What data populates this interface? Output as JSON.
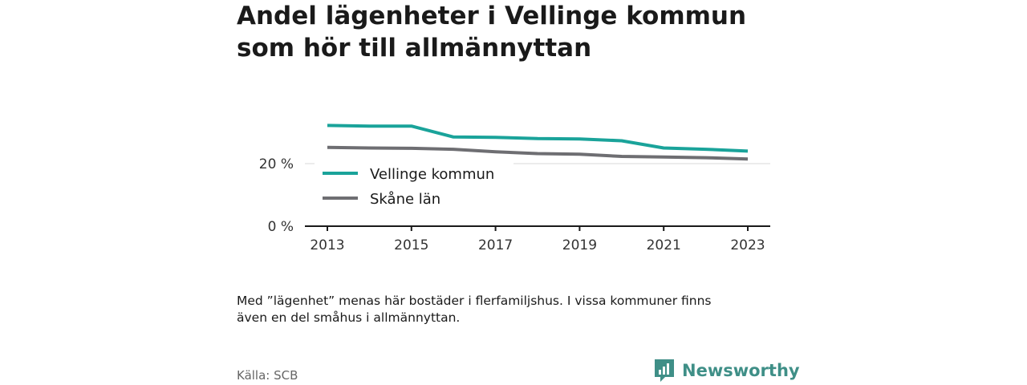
{
  "title_lines": [
    "Andel lägenheter i Vellinge kommun",
    "som hör till allmännyttan"
  ],
  "note_lines": [
    "Med ”lägenhet” menas här bostäder i flerfamiljshus. I vissa kommuner finns",
    "även en del småhus i allmännyttan."
  ],
  "source": "Källa: SCB",
  "brand": {
    "name": "Newsworthy",
    "icon": "newsworthy-logo-icon",
    "color": "#3f8f87"
  },
  "chart_data": {
    "type": "line",
    "title": "Andel lägenheter i Vellinge kommun som hör till allmännyttan",
    "x": [
      2013,
      2014,
      2015,
      2016,
      2017,
      2018,
      2019,
      2020,
      2021,
      2022,
      2023
    ],
    "x_ticks": [
      2013,
      2015,
      2017,
      2019,
      2021,
      2023
    ],
    "ylim": [
      0,
      40
    ],
    "y_ticks": [
      0,
      20
    ],
    "y_tick_labels": [
      "0 %",
      "20 %"
    ],
    "grid": true,
    "legend_position": "inside-left",
    "series": [
      {
        "name": "Vellinge kommun",
        "color": "#1aa39a",
        "values": [
          32.2,
          32.0,
          32.0,
          28.5,
          28.4,
          28.0,
          27.9,
          27.3,
          25.0,
          24.6,
          24.0
        ]
      },
      {
        "name": "Skåne län",
        "color": "#6e6e72",
        "values": [
          25.2,
          25.0,
          24.9,
          24.6,
          23.8,
          23.2,
          23.0,
          22.3,
          22.1,
          21.9,
          21.5
        ]
      }
    ]
  }
}
